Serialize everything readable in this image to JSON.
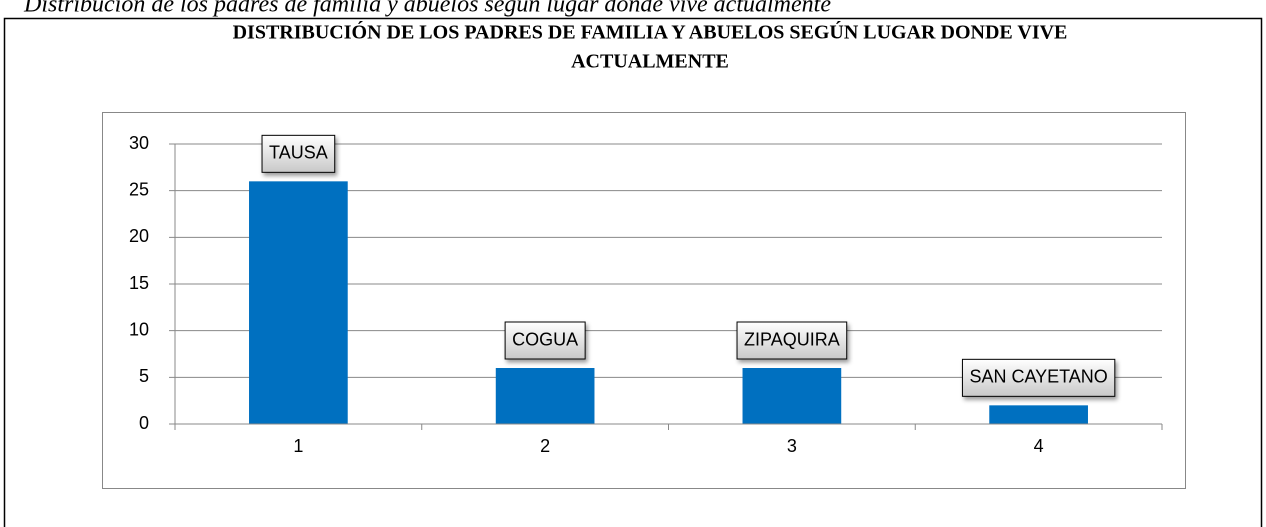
{
  "caption": "Distribución de los padres de familia y abuelos según lugar donde vive actualmente",
  "chart_data": {
    "type": "bar",
    "title": [
      "DISTRIBUCIÓN DE LOS PADRES DE FAMILIA Y ABUELOS SEGÚN LUGAR DONDE VIVE",
      "ACTUALMENTE"
    ],
    "categories": [
      "1",
      "2",
      "3",
      "4"
    ],
    "values": [
      26,
      6,
      6,
      2
    ],
    "data_labels": [
      "TAUSA",
      "COGUA",
      "ZIPAQUIRA",
      "SAN CAYETANO"
    ],
    "color": "#0070c0",
    "ylim": [
      0,
      30
    ],
    "yticks": [
      0,
      5,
      10,
      15,
      20,
      25,
      30
    ],
    "grid": true
  }
}
